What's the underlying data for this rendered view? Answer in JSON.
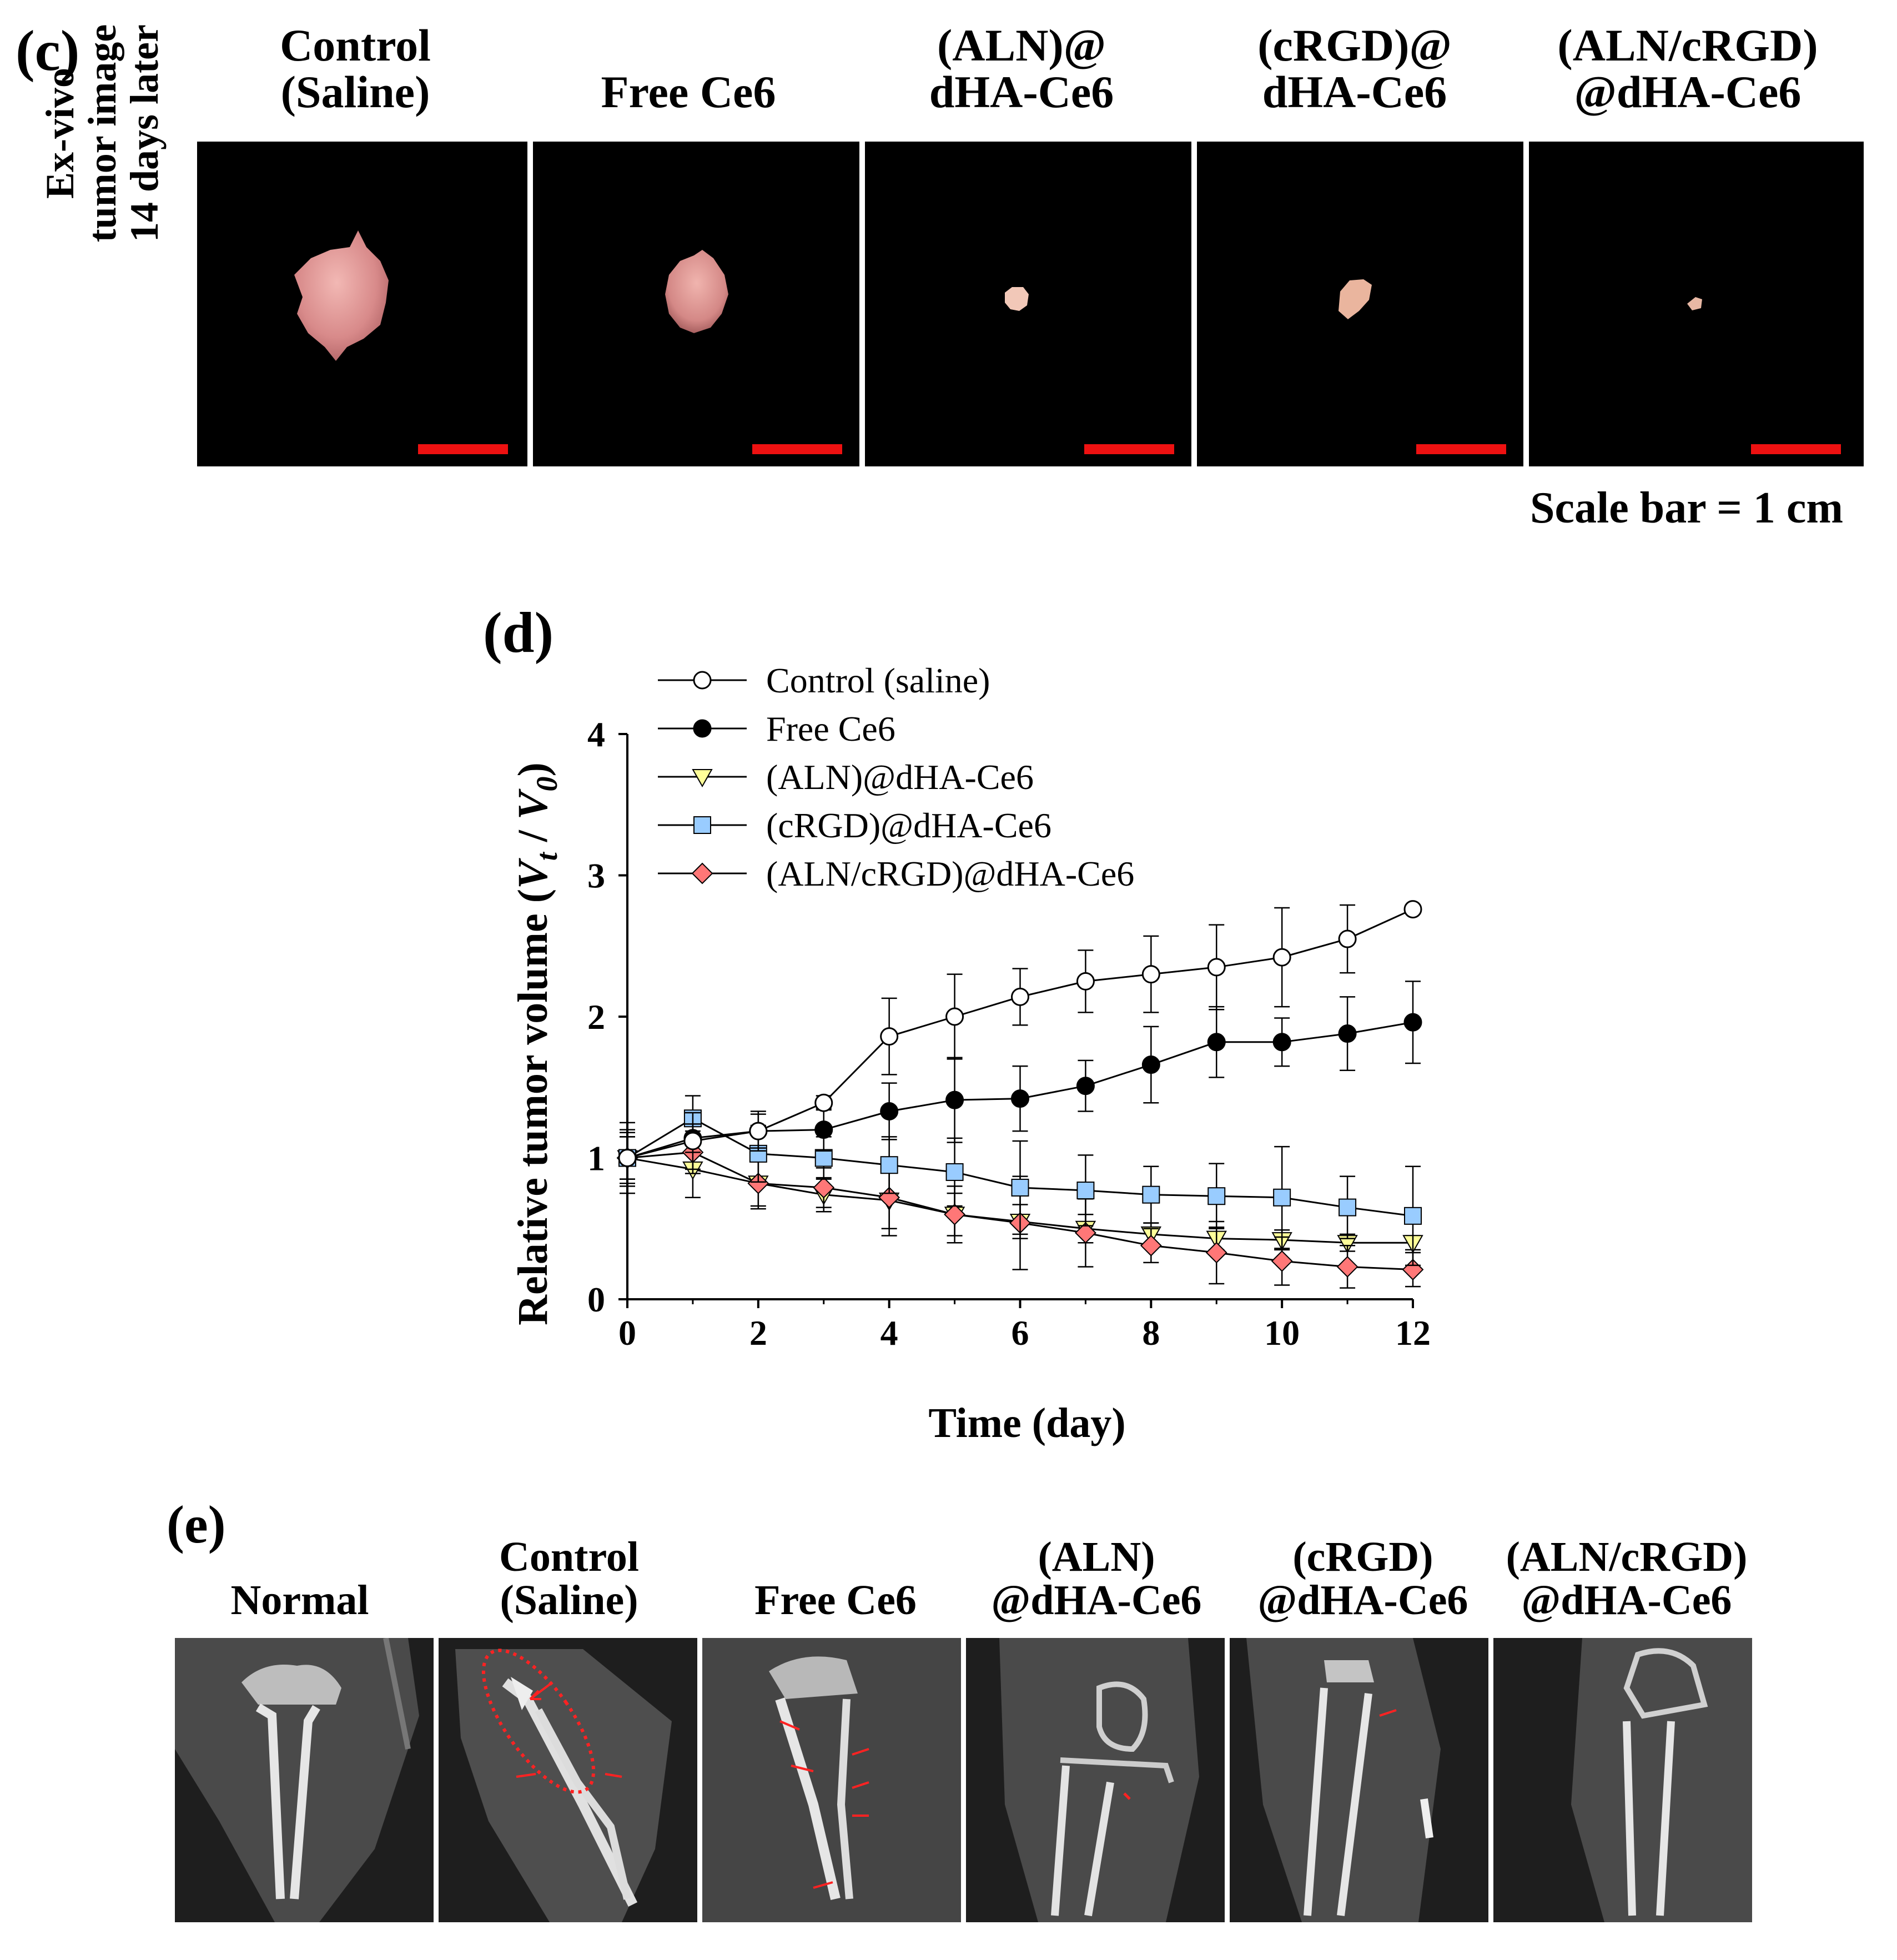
{
  "panel_c": {
    "label": "(c)",
    "row_label": [
      "Ex-vivo",
      "tumor image",
      "14 days later"
    ],
    "columns": [
      {
        "line1": "Control",
        "line2": "(Saline)"
      },
      {
        "line1": "",
        "line2": "Free Ce6"
      },
      {
        "line1": "(ALN)@",
        "line2": "dHA-Ce6"
      },
      {
        "line1": "(cRGD)@",
        "line2": "dHA-Ce6"
      },
      {
        "line1": "(ALN/cRGD)",
        "line2": "@dHA-Ce6"
      }
    ],
    "scale_bar_text": "Scale bar = 1 cm",
    "tumor_color": "#e8a2a0"
  },
  "panel_d": {
    "label": "(d)"
  },
  "chart_data": {
    "type": "line",
    "xlabel": "Time (day)",
    "ylabel_prefix": "Relative tumor volume (",
    "ylabel_vt": "V",
    "ylabel_vt_sub": "t",
    "ylabel_sep": " / ",
    "ylabel_v0": "V",
    "ylabel_v0_sub": "0",
    "ylabel_suffix": ")",
    "xlim": [
      0,
      12
    ],
    "ylim": [
      0,
      4
    ],
    "xticks": [
      0,
      2,
      4,
      6,
      8,
      10,
      12
    ],
    "yticks": [
      0,
      1,
      2,
      3,
      4
    ],
    "grid": false,
    "legend_position": "top-left",
    "series": [
      {
        "name": "Control (saline)",
        "marker": "circle",
        "fill": "#ffffff",
        "stroke": "#000000",
        "x": [
          0,
          1,
          2,
          3,
          4,
          5,
          6,
          7,
          8,
          9,
          10,
          11,
          12
        ],
        "y": [
          1.0,
          1.12,
          1.19,
          1.39,
          1.86,
          2.0,
          2.14,
          2.25,
          2.3,
          2.35,
          2.42,
          2.55,
          2.76
        ],
        "err": [
          0.25,
          0.2,
          0.12,
          0.05,
          0.27,
          0.3,
          0.2,
          0.22,
          0.27,
          0.3,
          0.35,
          0.24,
          0.0
        ]
      },
      {
        "name": "Free Ce6",
        "marker": "circle",
        "fill": "#000000",
        "stroke": "#000000",
        "x": [
          0,
          1,
          2,
          3,
          4,
          5,
          6,
          7,
          8,
          9,
          10,
          11,
          12
        ],
        "y": [
          1.0,
          1.14,
          1.19,
          1.2,
          1.33,
          1.41,
          1.42,
          1.51,
          1.66,
          1.82,
          1.82,
          1.88,
          1.96
        ],
        "err": [
          0.2,
          0.1,
          0.14,
          0.15,
          0.2,
          0.3,
          0.23,
          0.18,
          0.27,
          0.25,
          0.17,
          0.26,
          0.29
        ]
      },
      {
        "name": "(ALN)@dHA-Ce6",
        "marker": "triangle-down",
        "fill": "#ffff99",
        "stroke": "#000000",
        "x": [
          0,
          1,
          2,
          3,
          4,
          5,
          6,
          7,
          8,
          9,
          10,
          11,
          12
        ],
        "y": [
          1.0,
          0.92,
          0.82,
          0.74,
          0.7,
          0.6,
          0.55,
          0.5,
          0.46,
          0.43,
          0.42,
          0.4,
          0.4
        ],
        "err": [
          0.15,
          0.2,
          0.18,
          0.12,
          0.2,
          0.15,
          0.12,
          0.1,
          0.08,
          0.08,
          0.07,
          0.06,
          0.05
        ]
      },
      {
        "name": "(cRGD)@dHA-Ce6",
        "marker": "square",
        "fill": "#99ccff",
        "stroke": "#000000",
        "x": [
          0,
          1,
          2,
          3,
          4,
          5,
          6,
          7,
          8,
          9,
          10,
          11,
          12
        ],
        "y": [
          1.0,
          1.28,
          1.03,
          1.0,
          0.95,
          0.9,
          0.79,
          0.77,
          0.74,
          0.73,
          0.72,
          0.65,
          0.59
        ],
        "err": [
          0.18,
          0.16,
          0.2,
          0.15,
          0.2,
          0.24,
          0.33,
          0.25,
          0.2,
          0.23,
          0.36,
          0.22,
          0.35
        ]
      },
      {
        "name": "(ALN/cRGD)@dHA-Ce6",
        "marker": "diamond",
        "fill": "#ff7777",
        "stroke": "#000000",
        "x": [
          0,
          1,
          2,
          3,
          4,
          5,
          6,
          7,
          8,
          9,
          10,
          11,
          12
        ],
        "y": [
          1.0,
          1.04,
          0.82,
          0.79,
          0.72,
          0.6,
          0.54,
          0.47,
          0.38,
          0.33,
          0.27,
          0.23,
          0.21
        ],
        "err": [
          0.15,
          0.15,
          0.16,
          0.14,
          0.27,
          0.2,
          0.33,
          0.24,
          0.12,
          0.22,
          0.17,
          0.15,
          0.12
        ]
      }
    ]
  },
  "panel_e": {
    "label": "(e)",
    "columns": [
      {
        "line1": "",
        "line2": "Normal"
      },
      {
        "line1": "Control",
        "line2": "(Saline)"
      },
      {
        "line1": "",
        "line2": "Free Ce6"
      },
      {
        "line1": "(ALN)",
        "line2": "@dHA-Ce6"
      },
      {
        "line1": "(cRGD)",
        "line2": "@dHA-Ce6"
      },
      {
        "line1": "(ALN/cRGD)",
        "line2": "@dHA-Ce6"
      }
    ],
    "arrow_color": "#ff2222"
  }
}
